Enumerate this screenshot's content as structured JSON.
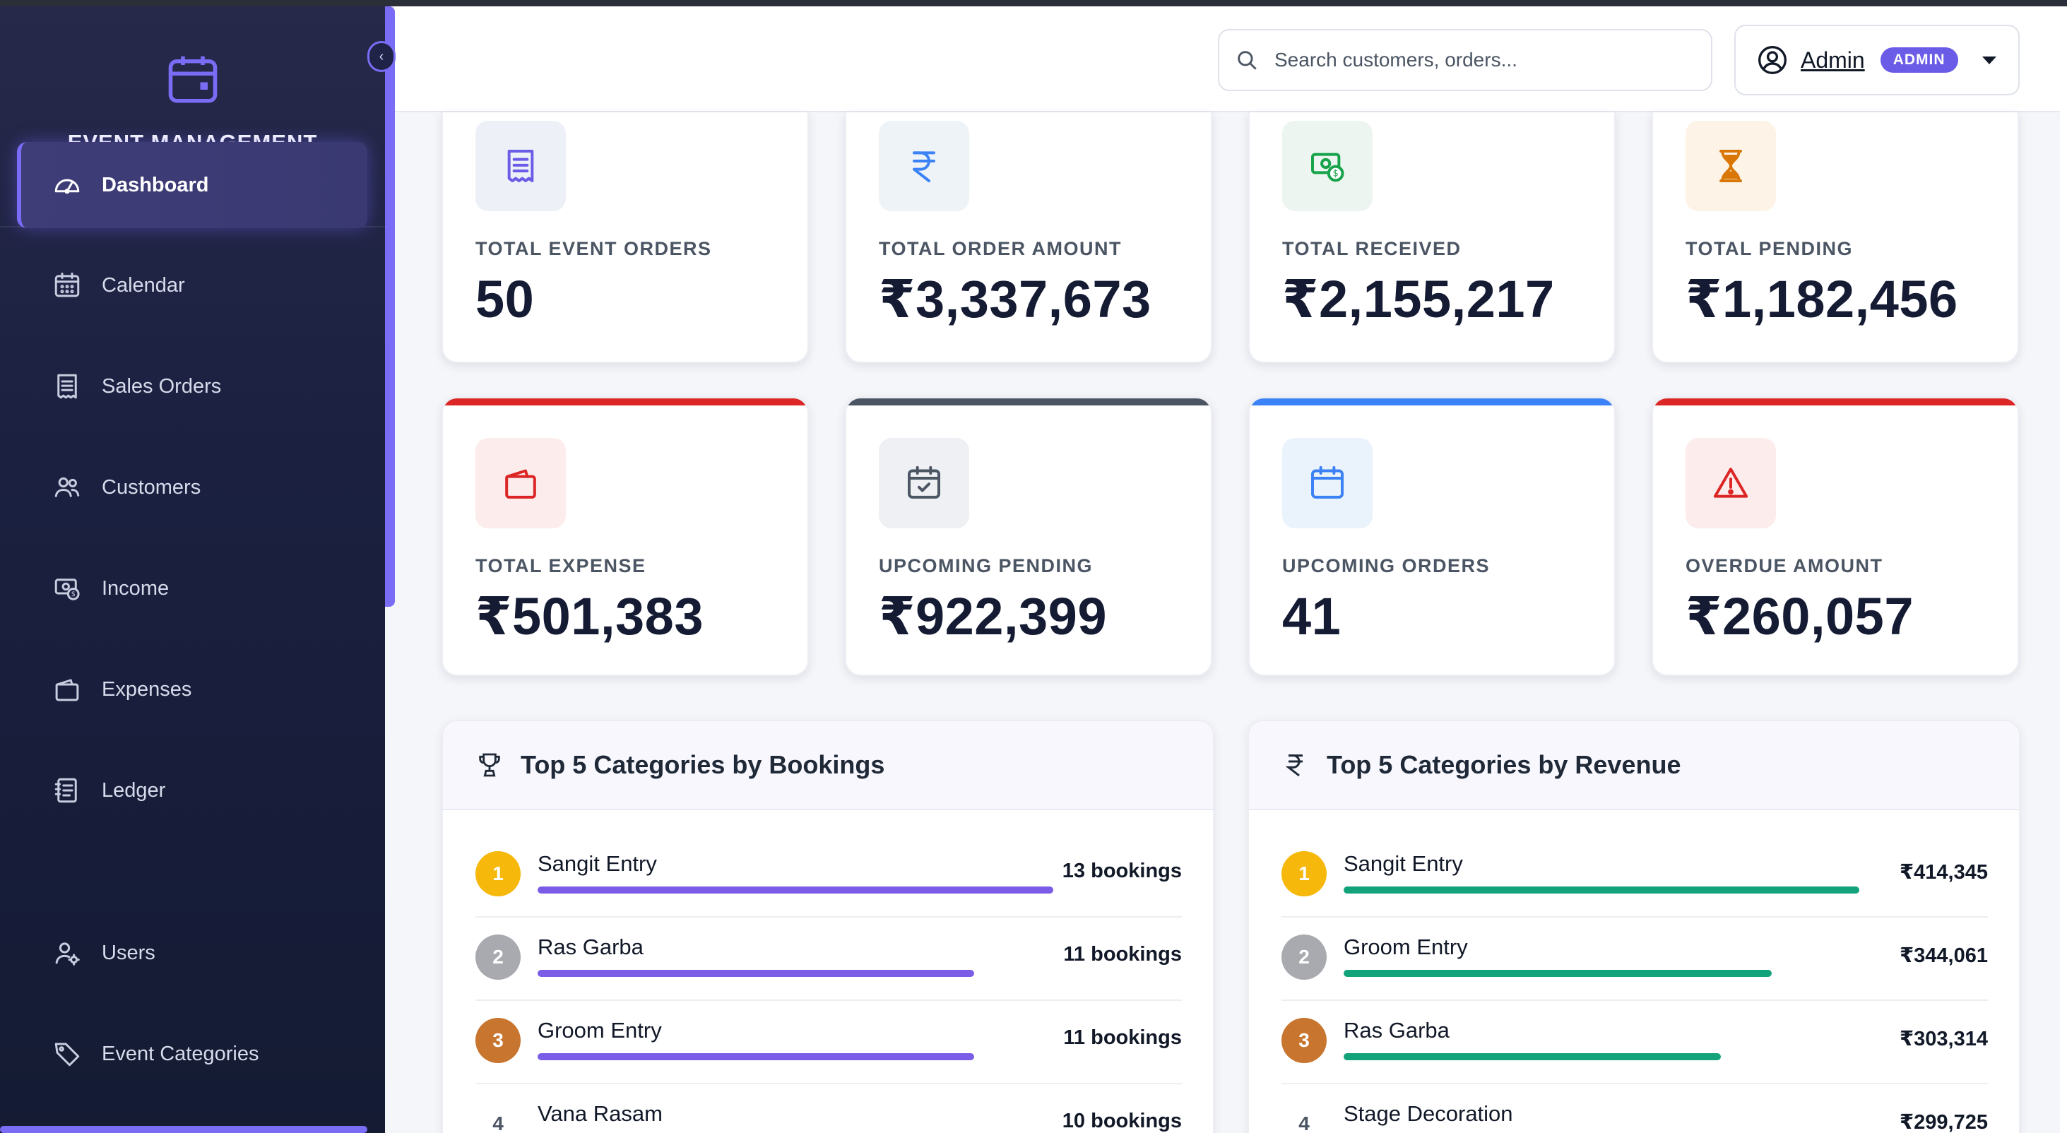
{
  "brand": {
    "title": "EVENT MANAGEMENT SYSTEM"
  },
  "sidebar": {
    "items": [
      {
        "label": "Dashboard",
        "icon": "gauge-icon",
        "active": true
      },
      {
        "label": "Calendar",
        "icon": "calendar-grid-icon"
      },
      {
        "label": "Sales Orders",
        "icon": "receipt-icon"
      },
      {
        "label": "Customers",
        "icon": "people-icon"
      },
      {
        "label": "Income",
        "icon": "cash-icon"
      },
      {
        "label": "Expenses",
        "icon": "wallet-icon"
      },
      {
        "label": "Ledger",
        "icon": "journal-icon"
      },
      {
        "label": "Users",
        "icon": "user-gear-icon"
      },
      {
        "label": "Event Categories",
        "icon": "tags-icon"
      }
    ]
  },
  "header": {
    "search_placeholder": "Search customers, orders...",
    "user_name": "Admin",
    "role_badge": "ADMIN"
  },
  "stats": [
    {
      "label": "TOTAL EVENT ORDERS",
      "value": "50",
      "icon": "receipt-icon",
      "icon_color": "#6b5ce7",
      "icon_bg": "#eef0f8",
      "accent": null
    },
    {
      "label": "TOTAL ORDER AMOUNT",
      "value": "₹3,337,673",
      "icon": "rupee-icon",
      "icon_color": "#3b82f6",
      "icon_bg": "#eef3f8",
      "accent": null
    },
    {
      "label": "TOTAL RECEIVED",
      "value": "₹2,155,217",
      "icon": "cash-coin-icon",
      "icon_color": "#16a34a",
      "icon_bg": "#edf5f1",
      "accent": null
    },
    {
      "label": "TOTAL PENDING",
      "value": "₹1,182,456",
      "icon": "hourglass-icon",
      "icon_color": "#d97706",
      "icon_bg": "#fdf3e7",
      "accent": null
    },
    {
      "label": "TOTAL EXPENSE",
      "value": "₹501,383",
      "icon": "wallet-icon",
      "icon_color": "#dc2626",
      "icon_bg": "#fdecec",
      "accent": "#dc2626"
    },
    {
      "label": "UPCOMING PENDING",
      "value": "₹922,399",
      "icon": "calendar-check-icon",
      "icon_color": "#4b5563",
      "icon_bg": "#eef0f3",
      "accent": "#4b5563"
    },
    {
      "label": "UPCOMING ORDERS",
      "value": "41",
      "icon": "calendar-icon",
      "icon_color": "#3b82f6",
      "icon_bg": "#eaf2fb",
      "accent": "#3b82f6"
    },
    {
      "label": "OVERDUE AMOUNT",
      "value": "₹260,057",
      "icon": "warning-icon",
      "icon_color": "#dc2626",
      "icon_bg": "#fdecec",
      "accent": "#dc2626"
    }
  ],
  "bookings_panel": {
    "title": "Top 5 Categories by Bookings",
    "icon": "trophy-icon",
    "bar_color": "#7b5ce7",
    "rows": [
      {
        "rank": "1",
        "name": "Sangit Entry",
        "value": "13 bookings",
        "count": 13
      },
      {
        "rank": "2",
        "name": "Ras Garba",
        "value": "11 bookings",
        "count": 11
      },
      {
        "rank": "3",
        "name": "Groom Entry",
        "value": "11 bookings",
        "count": 11
      },
      {
        "rank": "4",
        "name": "Vana Rasam",
        "value": "10 bookings",
        "count": 10
      }
    ]
  },
  "revenue_panel": {
    "title": "Top 5 Categories by Revenue",
    "icon": "rupee-icon",
    "bar_color": "#12a37a",
    "rows": [
      {
        "rank": "1",
        "name": "Sangit Entry",
        "value": "₹414,345",
        "count": 414345
      },
      {
        "rank": "2",
        "name": "Groom Entry",
        "value": "₹344,061",
        "count": 344061
      },
      {
        "rank": "3",
        "name": "Ras Garba",
        "value": "₹303,314",
        "count": 303314
      },
      {
        "rank": "4",
        "name": "Stage Decoration",
        "value": "₹299,725",
        "count": 299725
      }
    ]
  },
  "rank_colors": [
    "#f5b80b",
    "#a9aab0",
    "#c8752f",
    "#ffffff"
  ]
}
